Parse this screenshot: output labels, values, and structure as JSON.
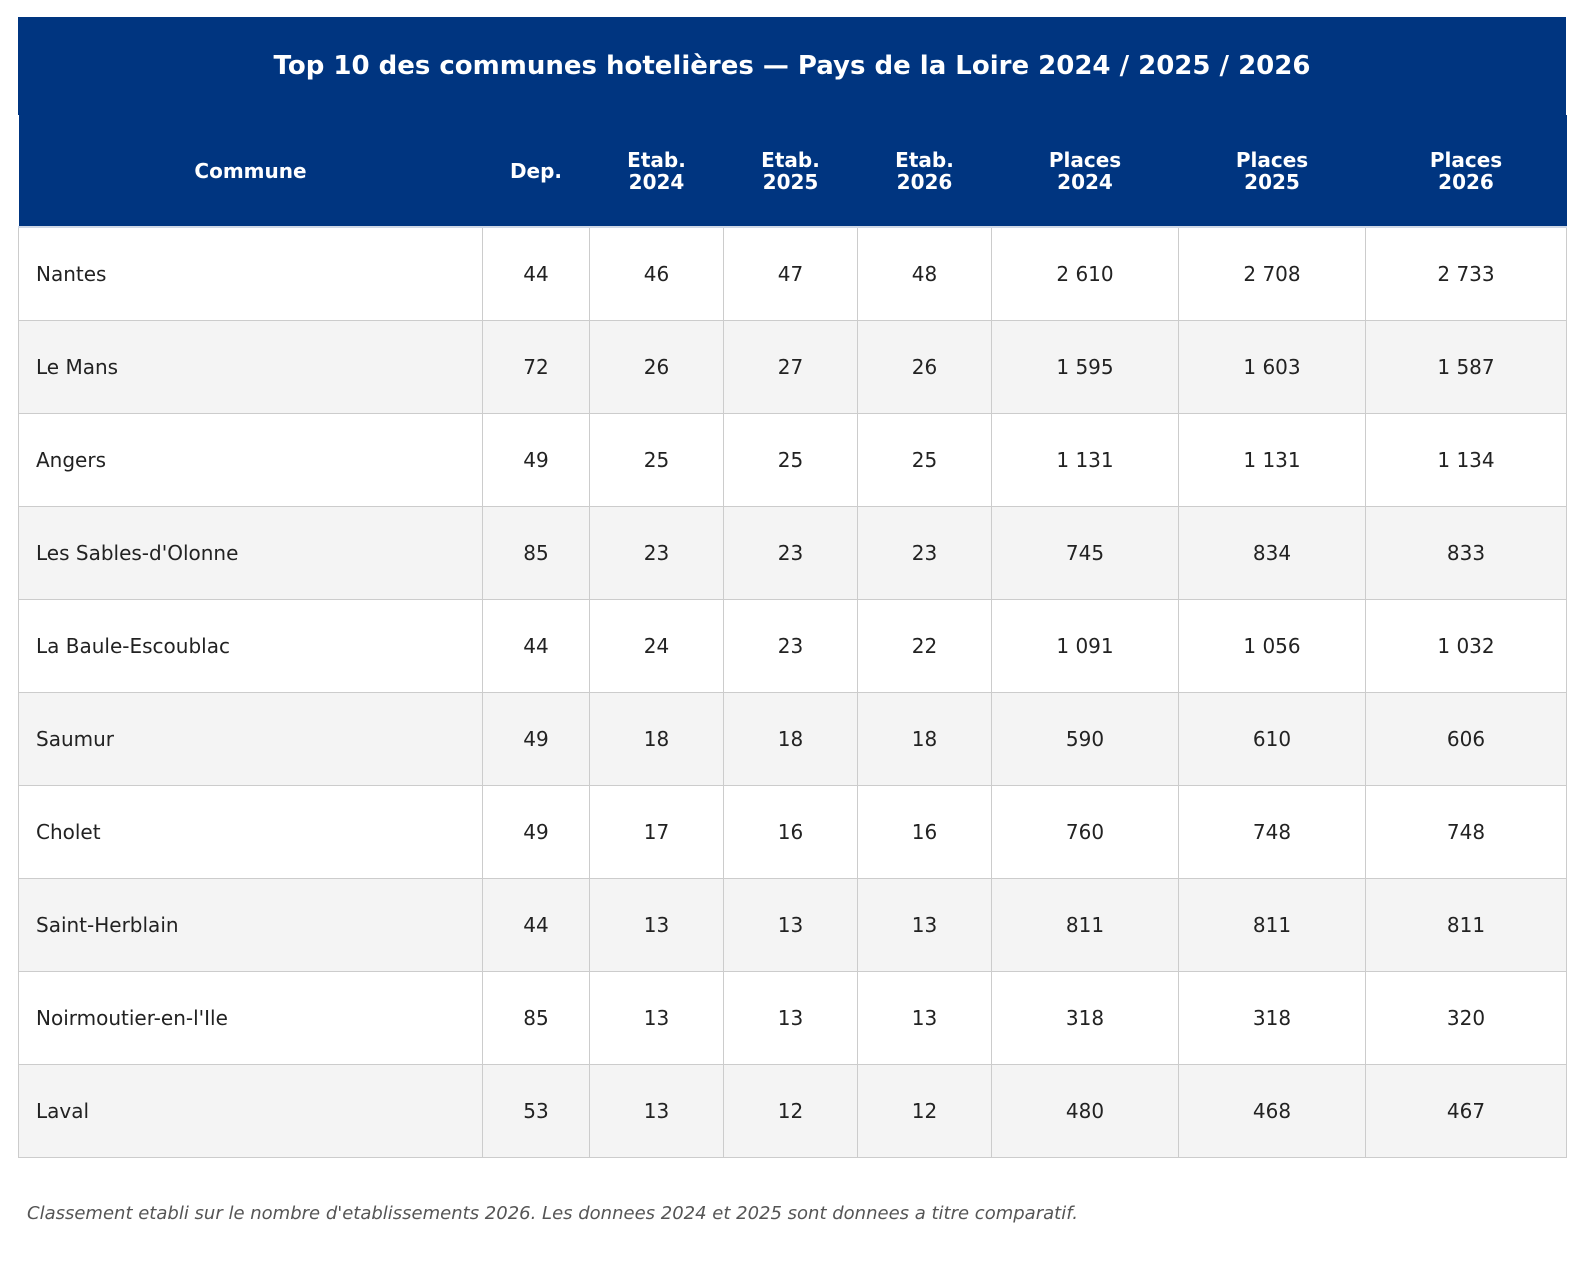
{
  "chart_data": {
    "type": "table",
    "title": "Top 10 des communes hotelières — Pays de la Loire 2024 / 2025 / 2026",
    "columns": [
      [
        "Commune"
      ],
      [
        "Dep."
      ],
      [
        "Etab.",
        "2024"
      ],
      [
        "Etab.",
        "2025"
      ],
      [
        "Etab.",
        "2026"
      ],
      [
        "Places",
        "2024"
      ],
      [
        "Places",
        "2025"
      ],
      [
        "Places",
        "2026"
      ]
    ],
    "rows": [
      [
        "Nantes",
        "44",
        "46",
        "47",
        "48",
        "2 610",
        "2 708",
        "2 733"
      ],
      [
        "Le Mans",
        "72",
        "26",
        "27",
        "26",
        "1 595",
        "1 603",
        "1 587"
      ],
      [
        "Angers",
        "49",
        "25",
        "25",
        "25",
        "1 131",
        "1 131",
        "1 134"
      ],
      [
        "Les Sables-d'Olonne",
        "85",
        "23",
        "23",
        "23",
        "745",
        "834",
        "833"
      ],
      [
        "La Baule-Escoublac",
        "44",
        "24",
        "23",
        "22",
        "1 091",
        "1 056",
        "1 032"
      ],
      [
        "Saumur",
        "49",
        "18",
        "18",
        "18",
        "590",
        "610",
        "606"
      ],
      [
        "Cholet",
        "49",
        "17",
        "16",
        "16",
        "760",
        "748",
        "748"
      ],
      [
        "Saint-Herblain",
        "44",
        "13",
        "13",
        "13",
        "811",
        "811",
        "811"
      ],
      [
        "Noirmoutier-en-l'Ile",
        "85",
        "13",
        "13",
        "13",
        "318",
        "318",
        "320"
      ],
      [
        "Laval",
        "53",
        "13",
        "12",
        "12",
        "480",
        "468",
        "467"
      ]
    ],
    "footnote": "Classement etabli sur le nombre d'etablissements 2026. Les donnees 2024 et 2025 sont donnees a titre comparatif."
  },
  "colors": {
    "header_background": "#003580",
    "header_text": "#ffffff",
    "row_alt_background": "#f4f4f4",
    "grid_lines": "#cccccc"
  }
}
